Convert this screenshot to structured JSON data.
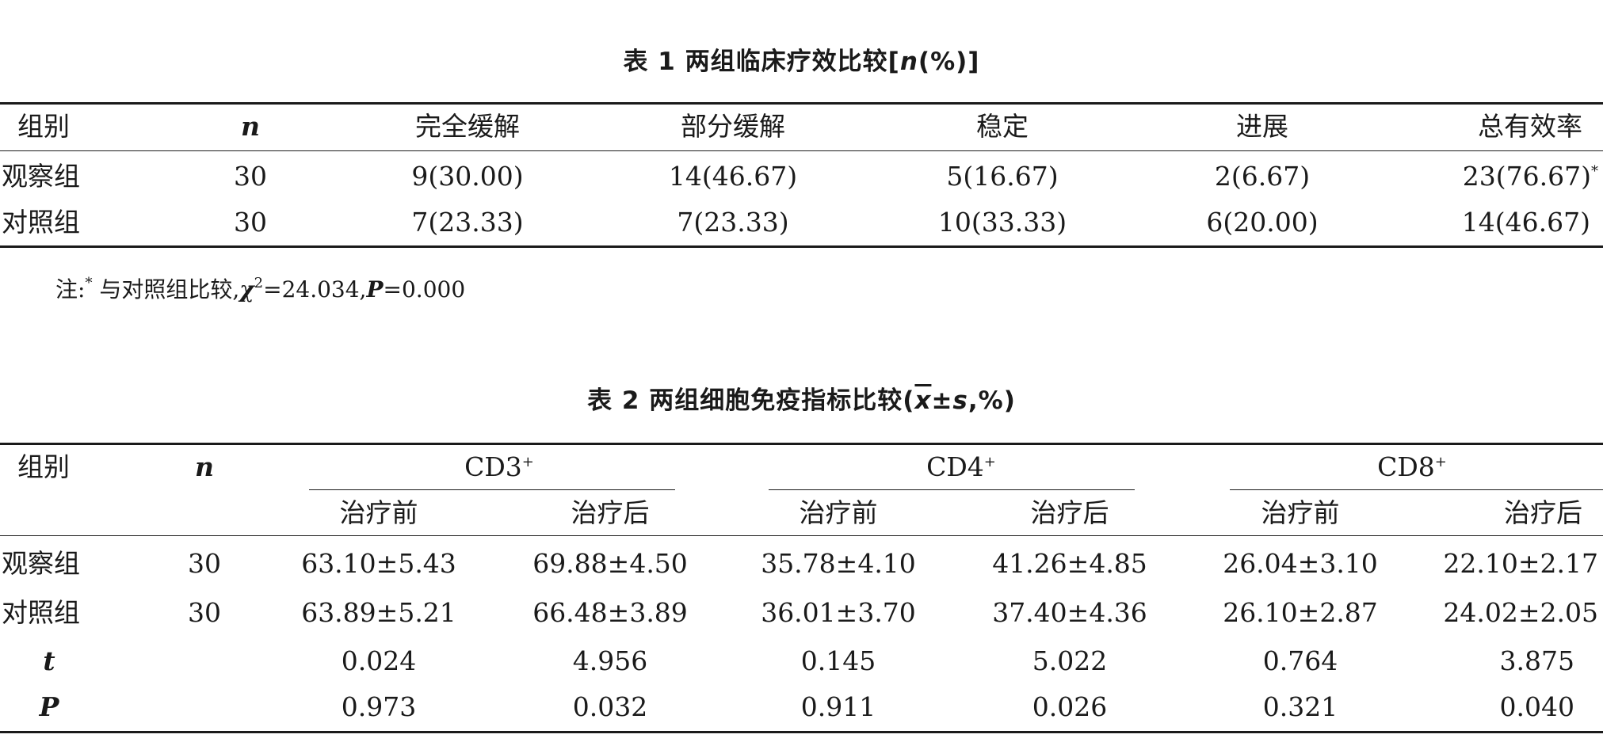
{
  "table1": {
    "caption_prefix": "表 1  两组临床疗效比较[",
    "caption_italic": "n",
    "caption_suffix": "(%)]",
    "headers": [
      "组别",
      "n",
      "完全缓解",
      "部分缓解",
      "稳定",
      "进展",
      "总有效率"
    ],
    "rows": [
      [
        "观察组",
        "30",
        "9(30.00)",
        "14(46.67)",
        "5(16.67)",
        "2(6.67)",
        "23(76.67)"
      ],
      [
        "对照组",
        "30",
        "7(23.33)",
        "7(23.33)",
        "10(33.33)",
        "6(20.00)",
        "14(46.67)"
      ]
    ],
    "star": "*",
    "note": {
      "prefix": "注:",
      "star": "*",
      "mid": " 与对照组比较,",
      "chi": "χ",
      "chi_sup": "2",
      "chi_val": "=24.034,",
      "p_label": "P",
      "p_val": "=0.000"
    }
  },
  "table2": {
    "caption_prefix": "表 2  两组细胞免疫指标比较(",
    "caption_x": "x",
    "caption_pm": "±",
    "caption_s": "s",
    "caption_suffix": ",%)",
    "header_group": "组别",
    "header_n": "n",
    "groups": [
      "CD3",
      "CD4",
      "CD8"
    ],
    "group_sup": "+",
    "subheaders": [
      "治疗前",
      "治疗后",
      "治疗前",
      "治疗后",
      "治疗前",
      "治疗后"
    ],
    "rows": [
      [
        "观察组",
        "30",
        "63.10±5.43",
        "69.88±4.50",
        "35.78±4.10",
        "41.26±4.85",
        "26.04±3.10",
        "22.10±2.17"
      ],
      [
        "对照组",
        "30",
        "63.89±5.21",
        "66.48±3.89",
        "36.01±3.70",
        "37.40±4.36",
        "26.10±2.87",
        "24.02±2.05"
      ]
    ],
    "stat_rows": [
      [
        "t",
        "0.024",
        "4.956",
        "0.145",
        "5.022",
        "0.764",
        "3.875"
      ],
      [
        "P",
        "0.973",
        "0.032",
        "0.911",
        "0.026",
        "0.321",
        "0.040"
      ]
    ]
  }
}
